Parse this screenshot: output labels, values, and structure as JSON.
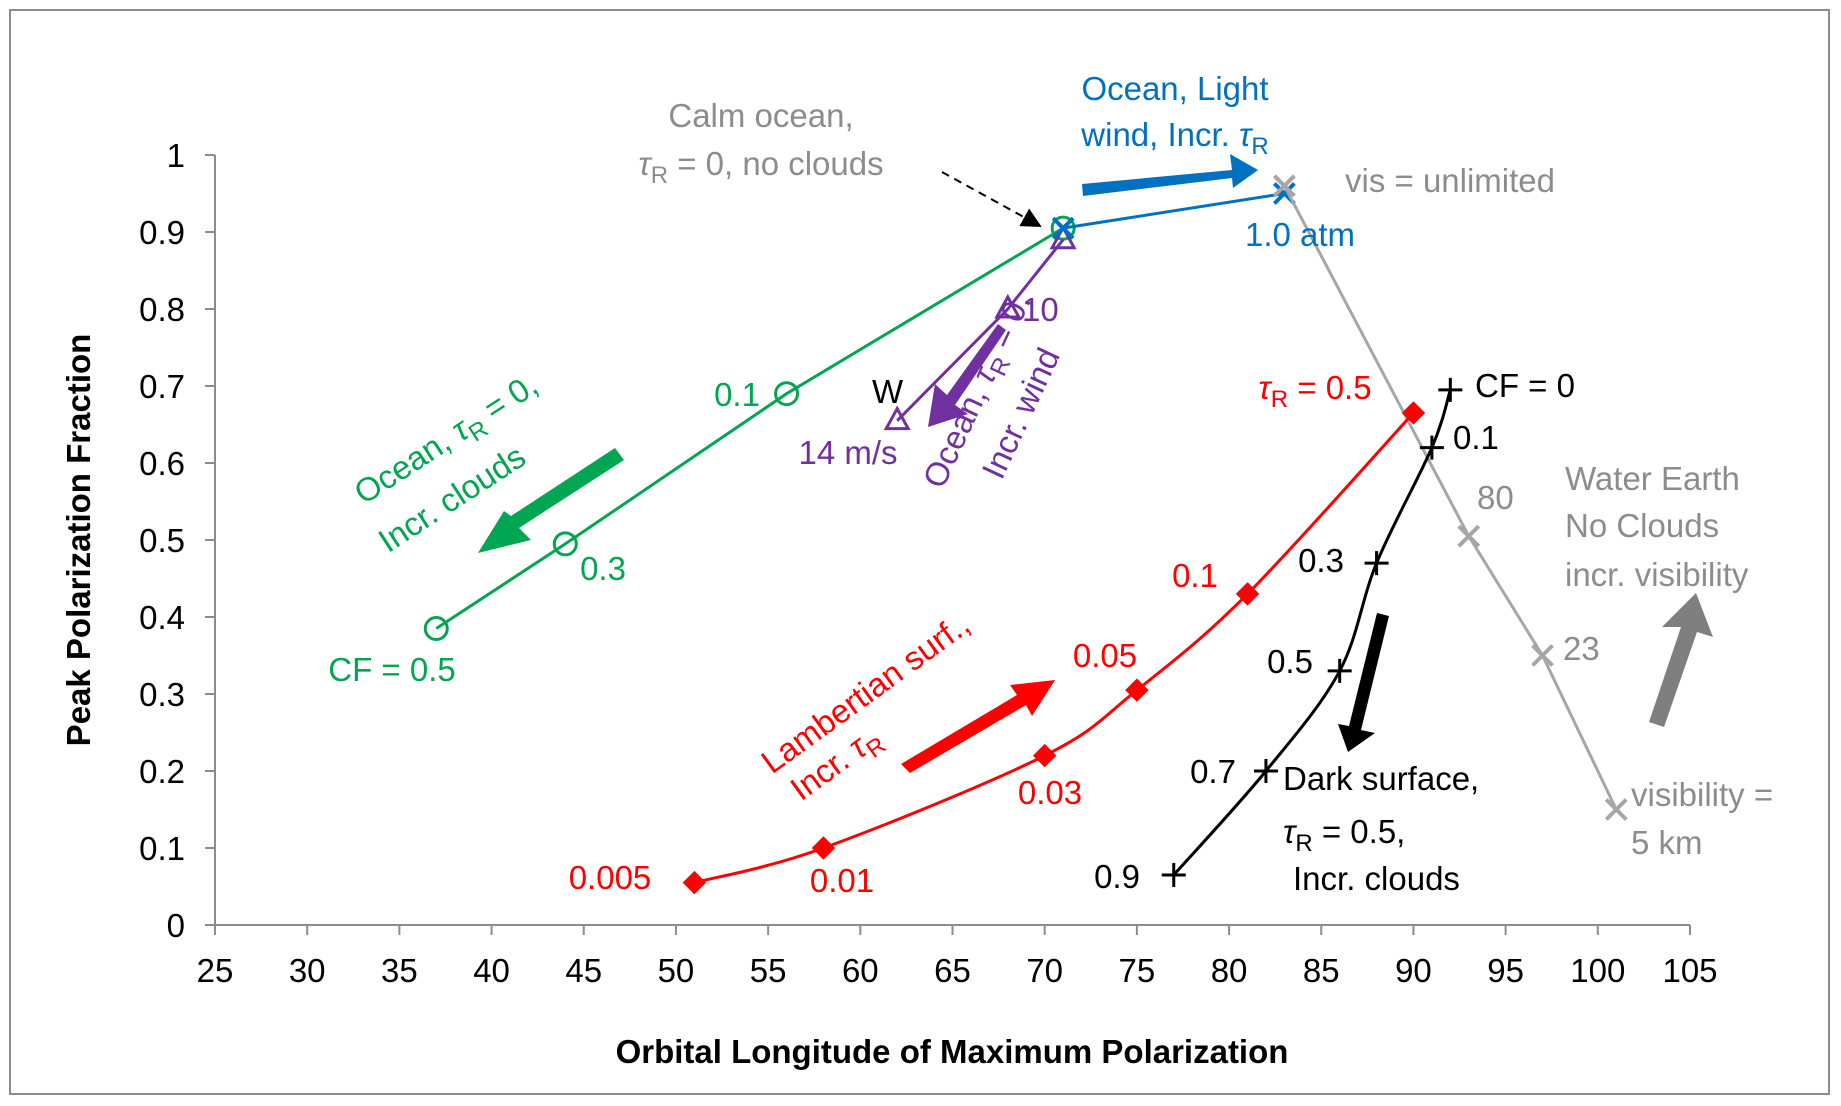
{
  "chart_data": {
    "type": "scatter",
    "title": "",
    "xlabel": "Orbital Longitude of Maximum Polarization",
    "ylabel": "Peak Polarization Fraction",
    "xlim": [
      25,
      105
    ],
    "ylim": [
      0,
      1
    ],
    "x_ticks": [
      "25",
      "30",
      "35",
      "40",
      "45",
      "50",
      "55",
      "60",
      "65",
      "70",
      "75",
      "80",
      "85",
      "90",
      "95",
      "100",
      "105"
    ],
    "y_ticks": [
      "0",
      "0.1",
      "0.2",
      "0.3",
      "0.4",
      "0.5",
      "0.6",
      "0.7",
      "0.8",
      "0.9",
      "1"
    ],
    "grid": false,
    "legend": "none",
    "series": [
      {
        "color": "#00a651",
        "marker": "circle",
        "smooth": false,
        "x": [
          71,
          56,
          44,
          37
        ],
        "y": [
          0.905,
          0.69,
          0.495,
          0.385
        ]
      },
      {
        "color": "#7030a0",
        "marker": "triangle",
        "smooth": false,
        "x": [
          71,
          68,
          62
        ],
        "y": [
          0.89,
          0.8,
          0.655
        ]
      },
      {
        "color": "#0070c0",
        "marker": "x",
        "smooth": false,
        "x": [
          71,
          83
        ],
        "y": [
          0.905,
          0.95
        ]
      },
      {
        "color": "#a6a6a6",
        "marker": "x",
        "smooth": false,
        "x": [
          83,
          93,
          97,
          101
        ],
        "y": [
          0.96,
          0.505,
          0.35,
          0.15
        ]
      },
      {
        "color": "#ff0000",
        "marker": "diamond",
        "smooth": true,
        "x": [
          51,
          58,
          70,
          75,
          81,
          90
        ],
        "y": [
          0.055,
          0.1,
          0.22,
          0.305,
          0.43,
          0.665
        ]
      },
      {
        "color": "#000000",
        "marker": "plus",
        "smooth": true,
        "x": [
          92,
          91,
          88,
          86,
          82,
          77
        ],
        "y": [
          0.695,
          0.62,
          0.47,
          0.33,
          0.2,
          0.065
        ]
      }
    ],
    "annotations": [
      {
        "text": "Calm ocean,",
        "color": "#8c8c8c"
      },
      {
        "text": "τR = 0, no clouds",
        "color": "#8c8c8c"
      },
      {
        "text": "Ocean, Light",
        "color": "#0070c0"
      },
      {
        "text": "wind, Incr. τR",
        "color": "#0070c0"
      },
      {
        "text": "vis = unlimited",
        "color": "#8c8c8c"
      },
      {
        "text": "1.0 atm",
        "color": "#0070c0"
      },
      {
        "text": "10",
        "color": "#7030a0"
      },
      {
        "text": "W",
        "color": "#000000"
      },
      {
        "text": "14 m/s",
        "color": "#7030a0"
      },
      {
        "text": "Ocean, τR = 0,",
        "color": "#7030a0"
      },
      {
        "text": "Incr. wind",
        "color": "#7030a0"
      },
      {
        "text": "0.1",
        "color": "#00a651"
      },
      {
        "text": "0.3",
        "color": "#00a651"
      },
      {
        "text": "CF = 0.5",
        "color": "#00a651"
      },
      {
        "text": "Ocean, τR = 0,",
        "color": "#00a651"
      },
      {
        "text": "Incr. clouds",
        "color": "#00a651"
      },
      {
        "text": "τR = 0.5",
        "color": "#ff0000"
      },
      {
        "text": "0.1",
        "color": "#ff0000"
      },
      {
        "text": "0.05",
        "color": "#ff0000"
      },
      {
        "text": "0.03",
        "color": "#ff0000"
      },
      {
        "text": "0.01",
        "color": "#ff0000"
      },
      {
        "text": "0.005",
        "color": "#ff0000"
      },
      {
        "text": "Lambertian surf.,",
        "color": "#ff0000"
      },
      {
        "text": "Incr. τR",
        "color": "#ff0000"
      },
      {
        "text": "CF = 0",
        "color": "#000000"
      },
      {
        "text": "0.1",
        "color": "#000000"
      },
      {
        "text": "0.3",
        "color": "#000000"
      },
      {
        "text": "0.5",
        "color": "#000000"
      },
      {
        "text": "0.7",
        "color": "#000000"
      },
      {
        "text": "0.9",
        "color": "#000000"
      },
      {
        "text": "Dark surface,",
        "color": "#000000"
      },
      {
        "text": "τR = 0.5,",
        "color": "#000000"
      },
      {
        "text": "Incr. clouds",
        "color": "#000000"
      },
      {
        "text": "80",
        "color": "#8c8c8c"
      },
      {
        "text": "23",
        "color": "#8c8c8c"
      },
      {
        "text": "Water Earth",
        "color": "#8c8c8c"
      },
      {
        "text": "No Clouds",
        "color": "#8c8c8c"
      },
      {
        "text": "incr. visibility",
        "color": "#8c8c8c"
      },
      {
        "text": "visibility =",
        "color": "#8c8c8c"
      },
      {
        "text": "5 km",
        "color": "#8c8c8c"
      }
    ]
  }
}
